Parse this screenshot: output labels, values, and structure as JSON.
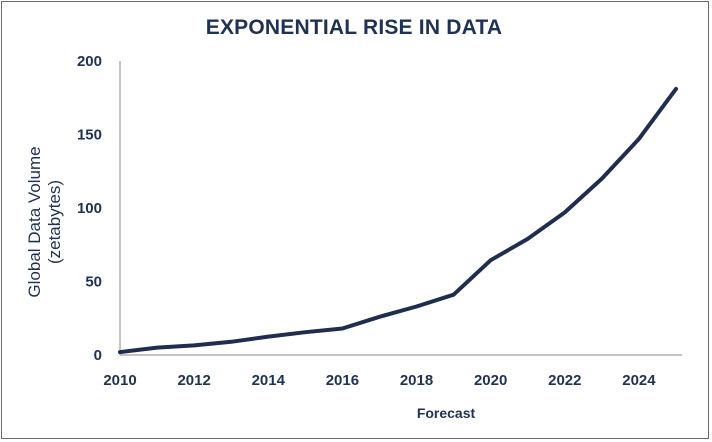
{
  "chart_data": {
    "type": "line",
    "title": "EXPONENTIAL RISE IN DATA",
    "xlabel": "Forecast",
    "ylabel": "Global Data Volume (zetabytes)",
    "ylabel_lines": [
      "Global Data Volume",
      "(zetabytes)"
    ],
    "xlim": [
      2010,
      2025
    ],
    "ylim": [
      0,
      200
    ],
    "xticks": [
      2010,
      2012,
      2014,
      2016,
      2018,
      2020,
      2022,
      2024
    ],
    "yticks": [
      0,
      50,
      100,
      150,
      200
    ],
    "grid": false,
    "series": [
      {
        "color": "#1f2d4e",
        "x": [
          2010,
          2011,
          2012,
          2013,
          2014,
          2015,
          2016,
          2017,
          2018,
          2019,
          2020,
          2021,
          2022,
          2023,
          2024,
          2025
        ],
        "y": [
          2,
          5,
          6.5,
          9,
          12.5,
          15.5,
          18,
          26,
          33,
          41,
          64.5,
          79,
          97,
          120,
          147,
          181
        ]
      }
    ]
  }
}
